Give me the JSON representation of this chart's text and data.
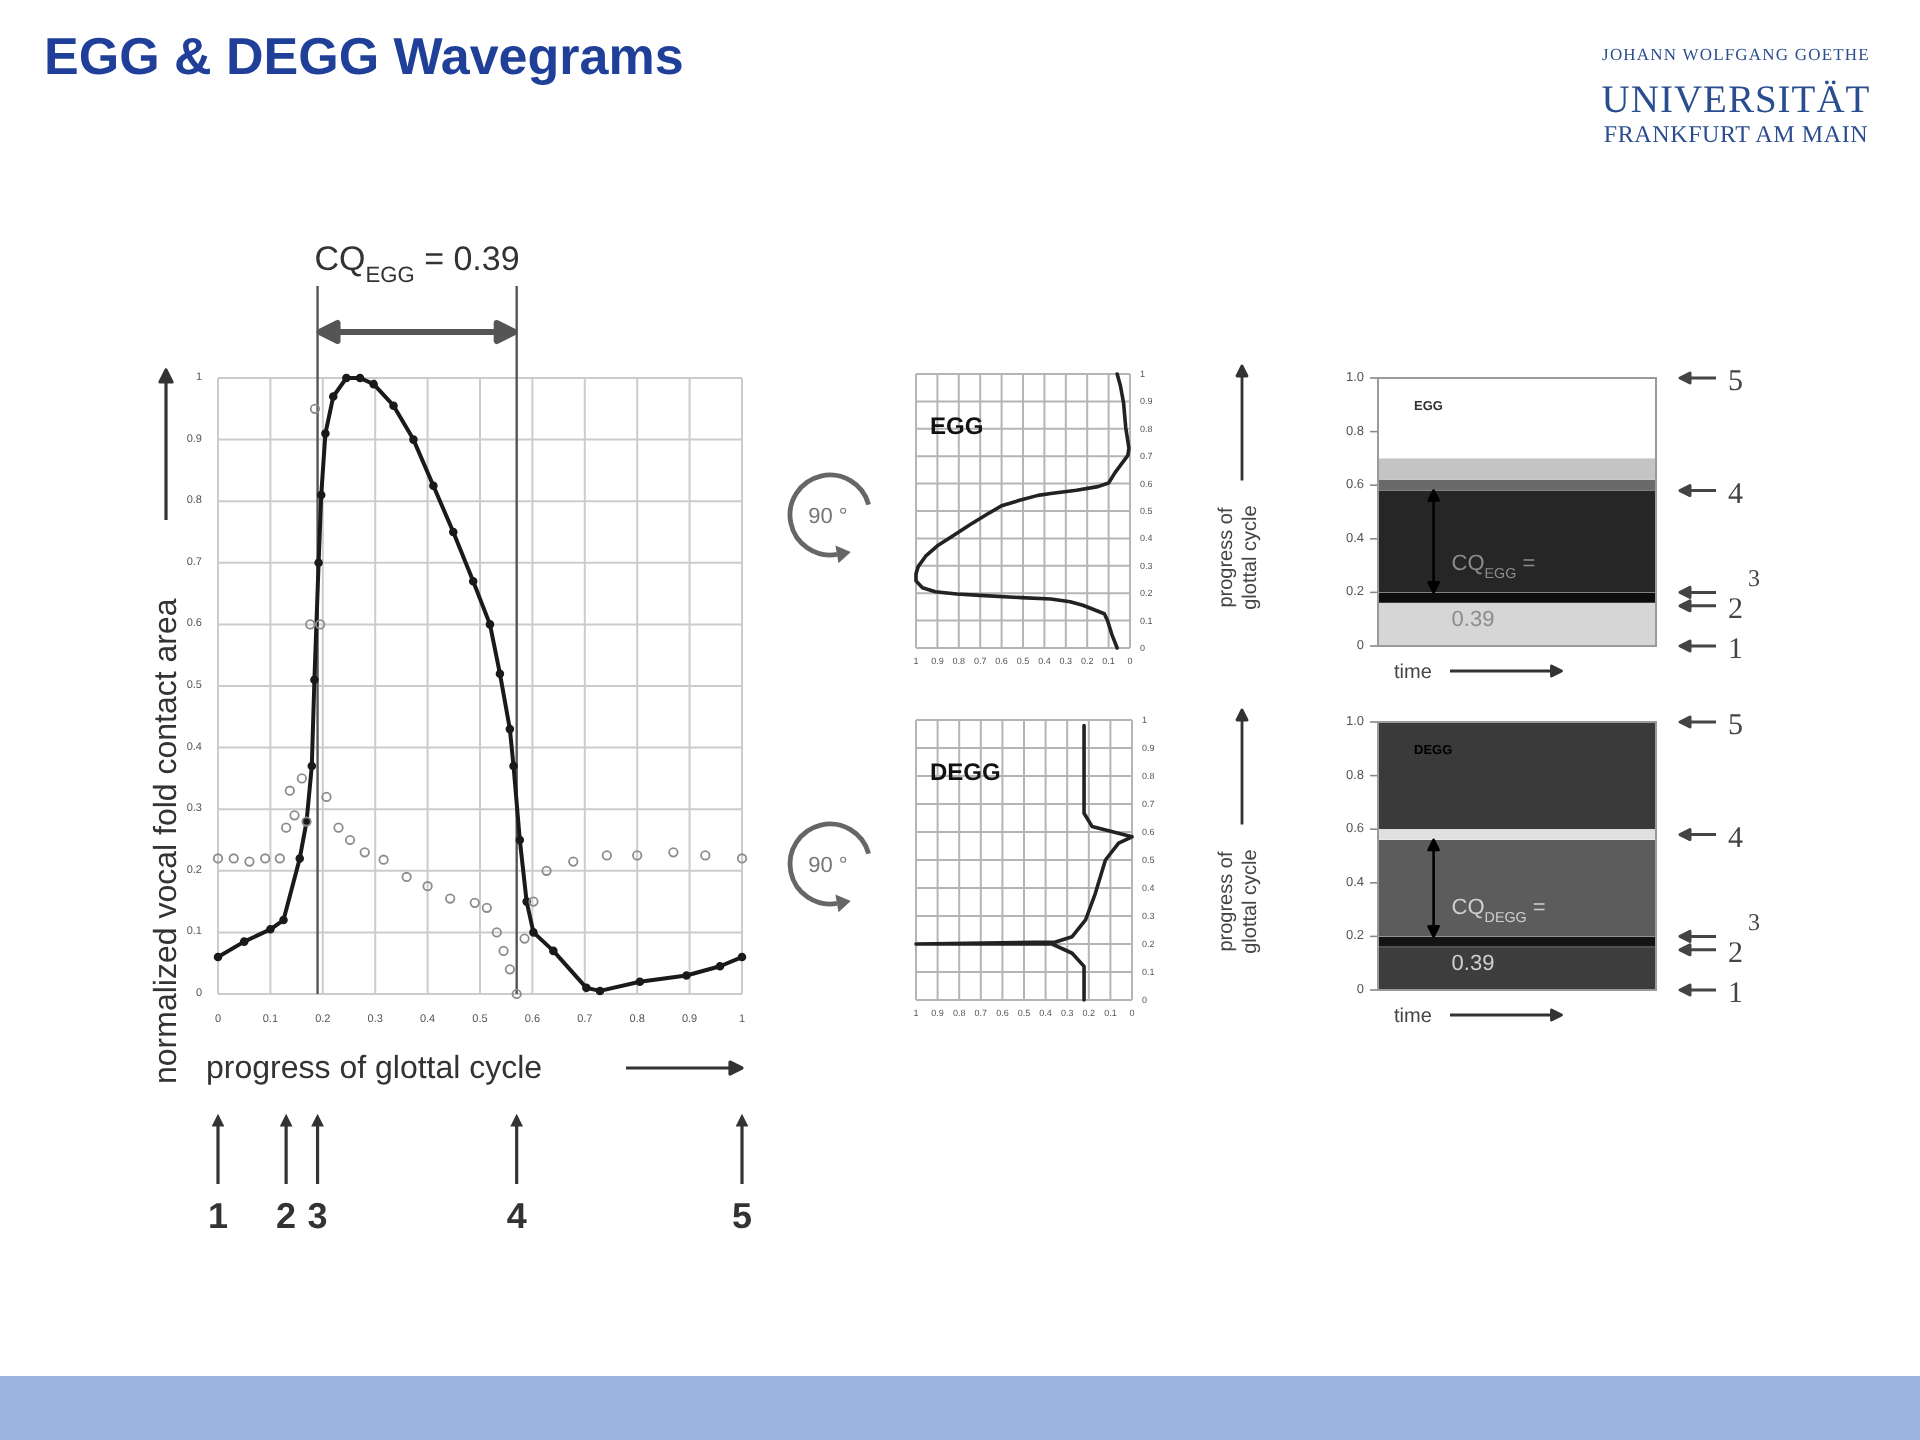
{
  "chart_data": [
    {
      "type": "line",
      "title": "EGG & DEGG Wavegrams",
      "xlabel": "progress of glottal cycle",
      "ylabel": "normalized vocal fold contact area",
      "xlim": [
        0,
        1
      ],
      "ylim": [
        0,
        1
      ],
      "xticks": [
        0,
        0.1,
        0.2,
        0.3,
        0.4,
        0.5,
        0.6,
        0.7,
        0.8,
        0.9,
        1
      ],
      "yticks": [
        0,
        0.1,
        0.2,
        0.3,
        0.4,
        0.5,
        0.6,
        0.7,
        0.8,
        0.9,
        1
      ],
      "grid": true,
      "marker": "circle",
      "series": [
        {
          "color": "#1a1a1a",
          "x": [
            0,
            0.05,
            0.1,
            0.125,
            0.156,
            0.169,
            0.179,
            0.184,
            0.192,
            0.197,
            0.205,
            0.22,
            0.245,
            0.271,
            0.297,
            0.335,
            0.373,
            0.411,
            0.449,
            0.487,
            0.519,
            0.538,
            0.557,
            0.564,
            0.576,
            0.589,
            0.602,
            0.64,
            0.703,
            0.729,
            0.805,
            0.894,
            0.958,
            1
          ],
          "values": [
            0.06,
            0.085,
            0.105,
            0.12,
            0.22,
            0.28,
            0.37,
            0.51,
            0.7,
            0.81,
            0.91,
            0.97,
            1,
            1,
            0.99,
            0.955,
            0.9,
            0.825,
            0.75,
            0.67,
            0.6,
            0.52,
            0.43,
            0.37,
            0.25,
            0.15,
            0.1,
            0.07,
            0.01,
            0.005,
            0.02,
            0.03,
            0.045,
            0.06
          ]
        },
        {
          "type": "scatter",
          "color": "#8c8c8c",
          "x": [
            0,
            0.03,
            0.06,
            0.09,
            0.118,
            0.13,
            0.137,
            0.146,
            0.16,
            0.169,
            0.176,
            0.185,
            0.195,
            0.207,
            0.23,
            0.252,
            0.28,
            0.316,
            0.36,
            0.4,
            0.443,
            0.49,
            0.513,
            0.532,
            0.545,
            0.557,
            0.57,
            0.585,
            0.602,
            0.627,
            0.678,
            0.742,
            0.8,
            0.869,
            0.93,
            1
          ],
          "values": [
            0.22,
            0.22,
            0.215,
            0.22,
            0.22,
            0.27,
            0.33,
            0.29,
            0.35,
            0.28,
            0.6,
            0.95,
            0.6,
            0.32,
            0.27,
            0.25,
            0.23,
            0.218,
            0.19,
            0.175,
            0.155,
            0.148,
            0.14,
            0.1,
            0.07,
            0.04,
            0,
            0.09,
            0.15,
            0.2,
            0.215,
            0.225,
            0.225,
            0.23,
            0.225,
            0.22
          ]
        }
      ],
      "ref_lines": [
        {
          "axis": "x",
          "value": 0.19,
          "color": "#555555"
        },
        {
          "axis": "x",
          "value": 0.57,
          "color": "#555555"
        }
      ],
      "annotations": [
        "CQ$_{EGG}$ = 0.39",
        {
          "text": "1",
          "x": 0
        },
        {
          "text": "2",
          "x": 0.13
        },
        {
          "text": "3",
          "x": 0.19
        },
        {
          "text": "4",
          "x": 0.57
        },
        {
          "text": "5",
          "x": 1
        },
        "JOHANN WOLFGANG GOETHE",
        "UNIVERSITÄT",
        "FRANKFURT AM MAIN"
      ]
    },
    {
      "type": "line",
      "title": "EGG",
      "color": "#222222",
      "x": [
        0.06,
        0.085,
        0.105,
        0.12,
        0.22,
        0.28,
        0.37,
        0.51,
        0.7,
        0.81,
        0.91,
        0.97,
        1,
        1,
        0.99,
        0.955,
        0.9,
        0.825,
        0.75,
        0.67,
        0.6,
        0.52,
        0.43,
        0.37,
        0.25,
        0.15,
        0.1,
        0.07,
        0.01,
        0.005,
        0.02,
        0.03,
        0.045,
        0.06
      ],
      "values": [
        0,
        0.05,
        0.1,
        0.125,
        0.156,
        0.169,
        0.179,
        0.184,
        0.192,
        0.197,
        0.205,
        0.22,
        0.245,
        0.271,
        0.297,
        0.335,
        0.373,
        0.411,
        0.449,
        0.487,
        0.519,
        0.538,
        0.557,
        0.564,
        0.576,
        0.589,
        0.602,
        0.64,
        0.703,
        0.729,
        0.805,
        0.894,
        0.958,
        1
      ],
      "xlim": [
        1,
        0
      ],
      "ylim": [
        0,
        1
      ],
      "xticks": [
        1,
        0.9,
        0.8,
        0.7,
        0.6,
        0.5,
        0.4,
        0.3,
        0.2,
        0.1,
        0
      ],
      "yticks": [
        0,
        0.1,
        0.2,
        0.3,
        0.4,
        0.5,
        0.6,
        0.7,
        0.8,
        0.9,
        1
      ],
      "grid": true,
      "annotations": [
        "90 °"
      ]
    },
    {
      "type": "line",
      "title": "DEGG",
      "color": "#222222",
      "x": [
        0.222,
        0.222,
        0.277,
        0.37,
        1,
        0.354,
        0.277,
        0.215,
        0.17,
        0.123,
        0.062,
        0,
        0.185,
        0.222,
        0.222
      ],
      "values": [
        0,
        0.12,
        0.167,
        0.2,
        0.2,
        0.207,
        0.226,
        0.286,
        0.38,
        0.5,
        0.56,
        0.583,
        0.62,
        0.667,
        0.98
      ],
      "xlim": [
        1,
        0
      ],
      "ylim": [
        0,
        1
      ],
      "xticks": [
        1,
        0.9,
        0.8,
        0.7,
        0.6,
        0.5,
        0.4,
        0.3,
        0.2,
        0.1,
        0
      ],
      "yticks": [
        0,
        0.1,
        0.2,
        0.3,
        0.4,
        0.5,
        0.6,
        0.7,
        0.8,
        0.9,
        1
      ],
      "grid": true,
      "annotations": [
        "90 °"
      ]
    },
    {
      "type": "line",
      "title": "EGG",
      "xlabel": "time",
      "ylabel": "progress of glottal cycle",
      "categories": [
        null,
        null,
        null,
        null,
        null,
        null,
        null,
        null,
        null,
        null,
        null,
        null
      ],
      "ylim": [
        0,
        1
      ],
      "yticks": [
        0,
        0.2,
        0.4,
        0.6,
        0.8,
        {
          "value": 1,
          "label": "1.0"
        }
      ],
      "series": [
        {
          "color": "#0d0d0d",
          "values": [
            0.18,
            0.18,
            0.18,
            0.18,
            0.18,
            0.18,
            0.18,
            0.18,
            0.18,
            0.18,
            0.18,
            0.18
          ]
        }
      ],
      "bands": [
        {
          "axis": "y",
          "from": 0,
          "to": 0.17,
          "color": "#d6d6d6"
        },
        {
          "axis": "y",
          "from": 0.2,
          "to": 0.58,
          "color": "#262626",
          "label": "CQ$_{EGG}$ = 0.39"
        },
        {
          "axis": "y",
          "from": 0.58,
          "to": 0.62,
          "color": "#6a6a6a"
        },
        {
          "axis": "y",
          "from": 0.62,
          "to": 0.7,
          "color": "#c4c4c4"
        }
      ],
      "annotations": [
        "5",
        "4",
        "3",
        "2",
        "1"
      ]
    },
    {
      "type": "line",
      "title": "DEGG",
      "xlabel": "time",
      "ylabel": "progress of glottal cycle",
      "categories": [
        null,
        null,
        null,
        null,
        null,
        null,
        null,
        null,
        null,
        null,
        null,
        null
      ],
      "ylim": [
        0,
        1
      ],
      "yticks": [
        0,
        0.2,
        0.4,
        0.6,
        0.8,
        {
          "value": 1,
          "label": "1.0"
        }
      ],
      "series": [
        {
          "color": "#e0e0e0",
          "values": [
            0.58,
            0.58,
            0.58,
            0.58,
            0.58,
            0.58,
            0.58,
            0.58,
            0.58,
            0.58,
            0.58,
            0.58
          ]
        },
        {
          "color": "#141414",
          "values": [
            0.18,
            0.18,
            0.18,
            0.18,
            0.18,
            0.18,
            0.18,
            0.18,
            0.18,
            0.18,
            0.18,
            0.18
          ]
        }
      ],
      "bands": [
        {
          "axis": "y",
          "from": 0,
          "to": 0.16,
          "color": "#3d3d3d"
        },
        {
          "axis": "y",
          "from": 0.2,
          "to": 0.56,
          "color": "#5c5c5c",
          "label": "CQ$_{DEGG}$ = 0.39"
        },
        {
          "axis": "y",
          "from": 0.6,
          "to": 1,
          "color": "#3a3a3a"
        }
      ],
      "annotations": [
        "5",
        "4",
        "3",
        "2",
        "1"
      ]
    }
  ]
}
